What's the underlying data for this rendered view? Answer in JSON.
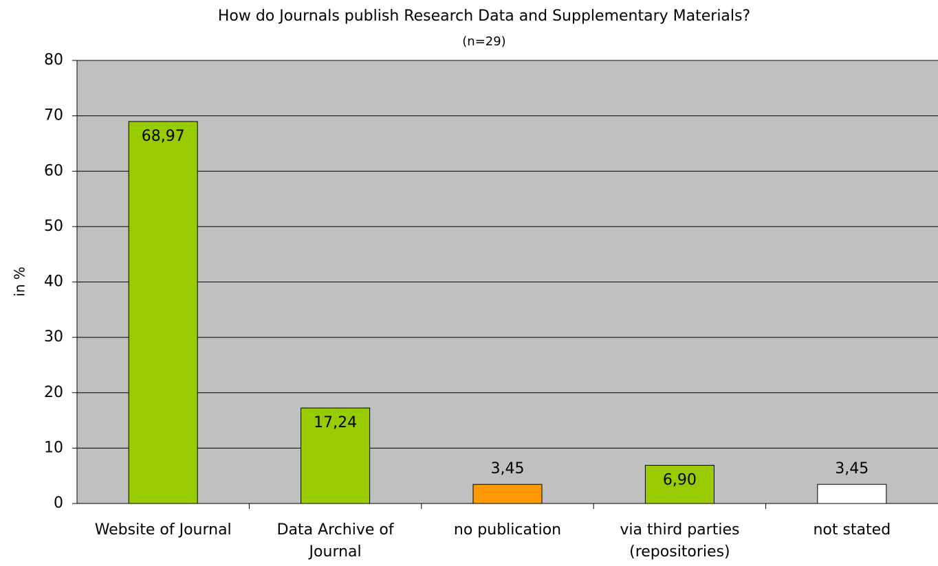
{
  "chart_data": {
    "type": "bar",
    "title": "How do Journals publish Research Data and Supplementary Materials?",
    "subtitle": "(n=29)",
    "y_label": "in %",
    "categories": [
      "Website of Journal",
      "Data Archive of Journal",
      "no publication",
      "via third parties (repositories)",
      "not stated"
    ],
    "values": [
      68.97,
      17.24,
      3.45,
      6.9,
      3.45
    ],
    "value_labels": [
      "68,97",
      "17,24",
      "3,45",
      "6,90",
      "3,45"
    ],
    "colors": [
      "#99cc00",
      "#99cc00",
      "#ff9900",
      "#99cc00",
      "#ffffff"
    ],
    "ylim": [
      0,
      80
    ],
    "yticks": [
      0,
      10,
      20,
      30,
      40,
      50,
      60,
      70,
      80
    ],
    "grid": true
  }
}
